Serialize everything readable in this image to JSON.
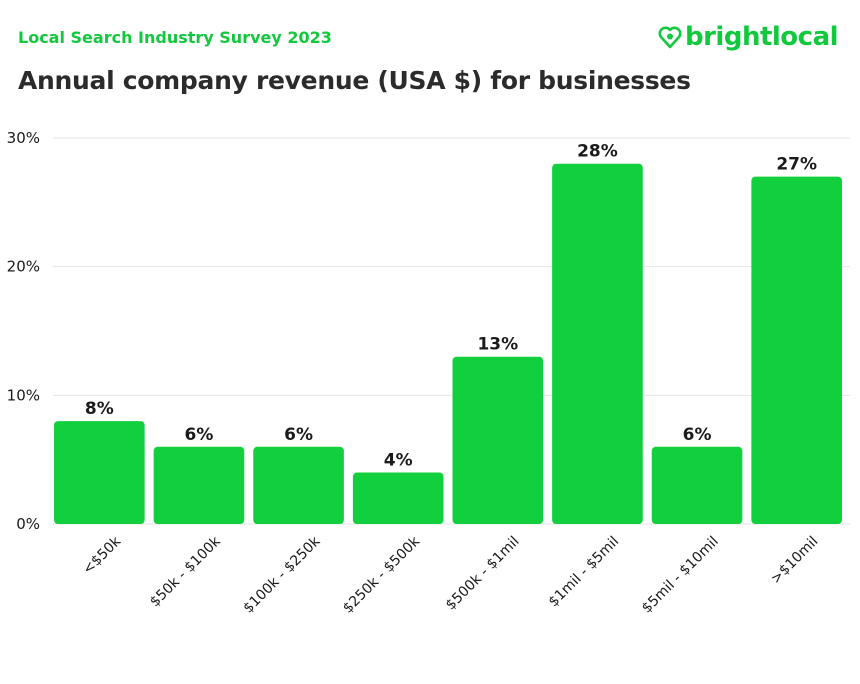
{
  "header": {
    "subtitle": "Local Search Industry Survey 2023",
    "title": "Annual company revenue (USA $) for businesses",
    "logo_text": "brightlocal",
    "logo_icon": "heart-pin-icon"
  },
  "colors": {
    "bar": "#12cf3e",
    "brand": "#12c93e",
    "grid": "#e6e6e6",
    "text": "#1a1a1a"
  },
  "chart_data": {
    "type": "bar",
    "title": "Annual company revenue (USA $) for businesses",
    "xlabel": "",
    "ylabel": "",
    "categories": [
      "<$50k",
      "$50k - $100k",
      "$100k - $250k",
      "$250k - $500k",
      "$500k - $1mil",
      "$1mil - $5mil",
      "$5mil - $10mil",
      ">$10mil"
    ],
    "values": [
      8,
      6,
      6,
      4,
      13,
      28,
      6,
      27
    ],
    "data_labels": [
      "8%",
      "6%",
      "6%",
      "4%",
      "13%",
      "28%",
      "6%",
      "27%"
    ],
    "ylim": [
      0,
      30
    ],
    "yticks": [
      0,
      10,
      20,
      30
    ],
    "ytick_labels": [
      "0%",
      "10%",
      "20%",
      "30%"
    ],
    "grid": true,
    "legend": "none"
  }
}
